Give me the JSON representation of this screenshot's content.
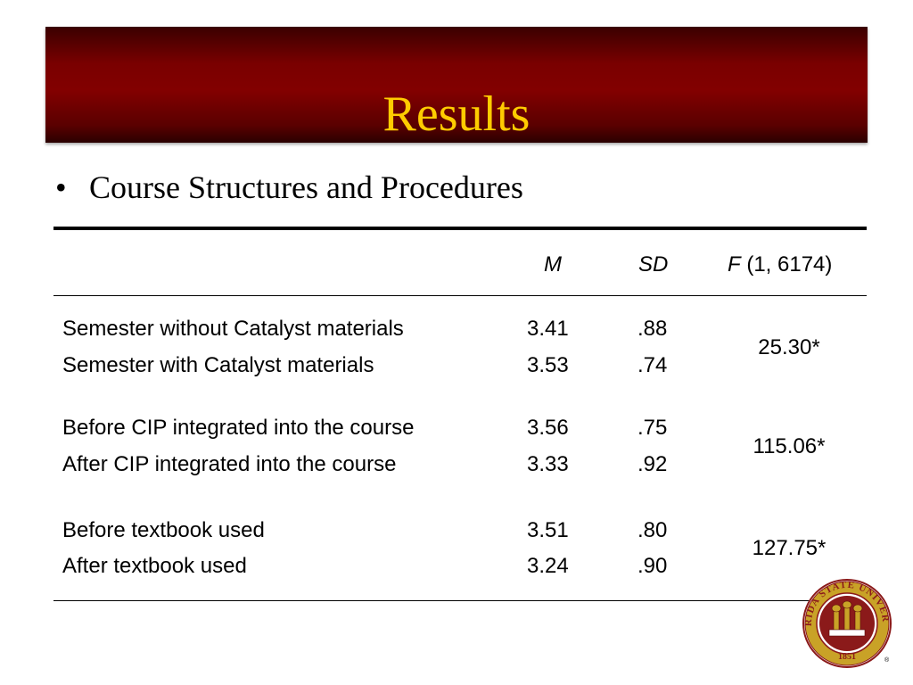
{
  "slide": {
    "title": "Results",
    "bullet": "Course Structures and Procedures"
  },
  "table": {
    "headers": {
      "m": "M",
      "sd": "SD",
      "f_letter": "F",
      "f_df": " (1, 6174)"
    },
    "groups": [
      {
        "rows": [
          {
            "label": "Semester without Catalyst materials",
            "m": "3.41",
            "sd": ".88"
          },
          {
            "label": "Semester with Catalyst materials",
            "m": "3.53",
            "sd": ".74"
          }
        ],
        "f": "25.30*"
      },
      {
        "rows": [
          {
            "label": "Before CIP integrated into the course",
            "m": "3.56",
            "sd": ".75"
          },
          {
            "label": "After CIP integrated into the course",
            "m": "3.33",
            "sd": ".92"
          }
        ],
        "f": "115.06*"
      },
      {
        "rows": [
          {
            "label": "Before textbook used",
            "m": "3.51",
            "sd": ".80"
          },
          {
            "label": "After textbook used",
            "m": "3.24",
            "sd": ".90"
          }
        ],
        "f": "127.75*"
      }
    ]
  },
  "logo": {
    "ring_text": "FLORIDA STATE UNIVERSITY",
    "year": "1851",
    "registered": "®",
    "colors": {
      "garnet": "#8b1a1a",
      "gold": "#c9a227"
    }
  }
}
